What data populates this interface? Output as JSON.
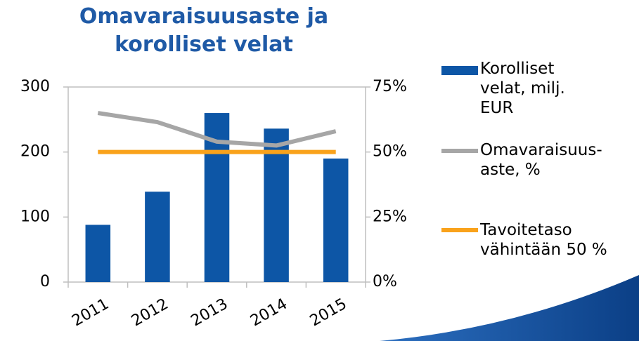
{
  "chart_data": {
    "type": "bar_line",
    "title": "Omavaraisuusaste ja korolliset velat",
    "categories": [
      "2011",
      "2012",
      "2013",
      "2014",
      "2015"
    ],
    "series": [
      {
        "name": "Korolliset velat, milj. EUR",
        "type": "bar",
        "color": "#0d56a6",
        "values": [
          88,
          139,
          260,
          236,
          190
        ]
      },
      {
        "name": "Omavaraisuus-aste, %",
        "type": "line",
        "axis": "y2",
        "color": "#a6a6a6",
        "values": [
          65,
          61.5,
          54,
          52.5,
          58
        ]
      },
      {
        "name": "Tavoitetaso vähintään 50 %",
        "type": "line",
        "axis": "y2",
        "color": "#f9a21b",
        "values": [
          50,
          50,
          50,
          50,
          50
        ]
      }
    ],
    "ylim": [
      0,
      300
    ],
    "yticks": [
      0,
      100,
      200,
      300
    ],
    "y2lim": [
      0,
      75
    ],
    "y2ticks": [
      {
        "value": 0,
        "label": "0%"
      },
      {
        "value": 25,
        "label": "25%"
      },
      {
        "value": 50,
        "label": "50%"
      },
      {
        "value": 75,
        "label": "75%"
      }
    ],
    "grid": false
  }
}
